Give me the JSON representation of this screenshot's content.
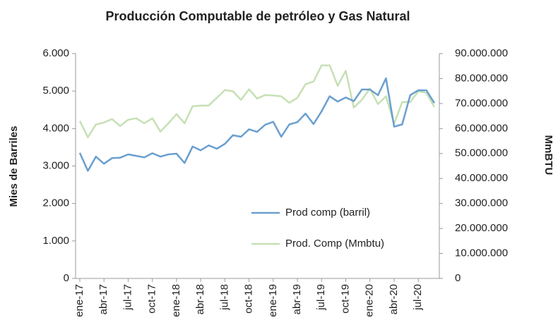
{
  "chart_data": {
    "type": "line",
    "title": "Producción Computable de petróleo y Gas Natural",
    "ylabel": "Mies de Barriles",
    "y2label": "MmBTU",
    "categories": [
      "ene-17",
      null,
      null,
      "abr-17",
      null,
      null,
      "jul-17",
      null,
      null,
      "oct-17",
      null,
      null,
      "ene-18",
      null,
      null,
      "abr-18",
      null,
      null,
      "jul-18",
      null,
      null,
      "oct-18",
      null,
      null,
      "ene-19",
      null,
      null,
      "abr-19",
      null,
      null,
      "jul-19",
      null,
      null,
      "oct-19",
      null,
      null,
      "ene-20",
      null,
      null,
      "abr-20",
      null,
      null,
      "jul-20",
      null,
      null
    ],
    "series": [
      {
        "name": "Prod comp (barril)",
        "color": "#6a9fcf",
        "axis": "y",
        "values": [
          3350,
          2870,
          3250,
          3060,
          3210,
          3220,
          3310,
          3270,
          3230,
          3340,
          3250,
          3310,
          3330,
          3080,
          3520,
          3420,
          3550,
          3460,
          3590,
          3820,
          3780,
          3980,
          3910,
          4100,
          4180,
          3780,
          4110,
          4170,
          4400,
          4120,
          4460,
          4860,
          4720,
          4830,
          4730,
          5040,
          5040,
          4890,
          5340,
          4050,
          4110,
          4890,
          5020,
          5020,
          4680
        ]
      },
      {
        "name": "Prod. Comp (Mmbtu)",
        "color": "#c6e0b4",
        "axis": "y2",
        "values": [
          63000000,
          56500000,
          61600000,
          62400000,
          63800000,
          61000000,
          63500000,
          64100000,
          62100000,
          64100000,
          58800000,
          62100000,
          65800000,
          62100000,
          68900000,
          69200000,
          69200000,
          72300000,
          75400000,
          74900000,
          71500000,
          75700000,
          72000000,
          73400000,
          73200000,
          72900000,
          70300000,
          72300000,
          77700000,
          78800000,
          85300000,
          85300000,
          77100000,
          83100000,
          68400000,
          71500000,
          76000000,
          69800000,
          72900000,
          61900000,
          70600000,
          70600000,
          74900000,
          74300000,
          68600000
        ]
      }
    ],
    "ylim": [
      0,
      6000
    ],
    "yticks": [
      0,
      {
        "value": 1000,
        "label": "1.000"
      },
      {
        "value": 2000,
        "label": "2.000"
      },
      {
        "value": 3000,
        "label": "3.000"
      },
      {
        "value": 4000,
        "label": "4.000"
      },
      {
        "value": 5000,
        "label": "5.000"
      },
      {
        "value": 6000,
        "label": "6.000"
      }
    ],
    "y2lim": [
      0,
      90000000
    ],
    "y2ticks": [
      0,
      {
        "value": 10000000,
        "label": "10.000.000"
      },
      {
        "value": 20000000,
        "label": "20.000.000"
      },
      {
        "value": 30000000,
        "label": "30.000.000"
      },
      {
        "value": 40000000,
        "label": "40.000.000"
      },
      {
        "value": 50000000,
        "label": "50.000.000"
      },
      {
        "value": 60000000,
        "label": "60.000.000"
      },
      {
        "value": 70000000,
        "label": "70.000.000"
      },
      {
        "value": 80000000,
        "label": "80.000.000"
      },
      {
        "value": 90000000,
        "label": "90.000.000"
      }
    ],
    "grid": false,
    "legend": "lower right"
  }
}
